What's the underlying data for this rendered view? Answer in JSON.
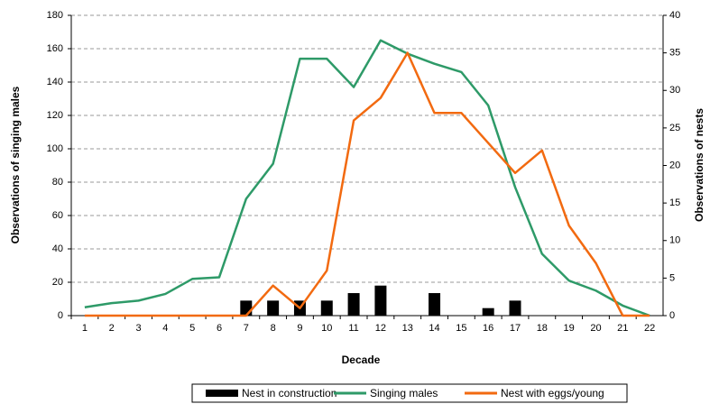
{
  "chart_data": {
    "type": "bar",
    "x_label": "Decade",
    "y_label": "Observations of singing males",
    "y2_label": "Observations of nests",
    "categories": [
      "1",
      "2",
      "3",
      "4",
      "5",
      "6",
      "7",
      "8",
      "9",
      "10",
      "11",
      "12",
      "13",
      "14",
      "15",
      "16",
      "17",
      "18",
      "19",
      "20",
      "21",
      "22"
    ],
    "series": [
      {
        "name": "Nest in construction",
        "type": "bar",
        "color": "#000000",
        "axis": "y2",
        "values": [
          0,
          0,
          0,
          0,
          0,
          0,
          2,
          2,
          2,
          2,
          3,
          4,
          0,
          3,
          0,
          1,
          2,
          0,
          0,
          0,
          0,
          0
        ]
      },
      {
        "name": "Singing males",
        "type": "line",
        "color": "#2e9a68",
        "values": [
          5,
          7.5,
          9,
          13,
          22,
          23,
          70,
          91,
          154,
          154,
          137,
          165,
          157,
          151,
          146,
          126,
          77,
          37,
          21,
          15,
          6,
          0
        ]
      },
      {
        "name": "Nest with eggs/young",
        "type": "line",
        "color": "#f26a10",
        "axis": "y2",
        "values": [
          0,
          0,
          0,
          0,
          0,
          0,
          0,
          4,
          1,
          6,
          26,
          29,
          35,
          27,
          27,
          23,
          19,
          22,
          12,
          7,
          0,
          0
        ]
      }
    ],
    "ylim": [
      0,
      180
    ],
    "yticks": [
      0,
      20,
      40,
      60,
      80,
      100,
      120,
      140,
      160,
      180
    ],
    "y2lim": [
      0,
      40
    ],
    "y2ticks": [
      0,
      5,
      10,
      15,
      20,
      25,
      30,
      35,
      40
    ],
    "grid": true,
    "legend": "bottom"
  }
}
